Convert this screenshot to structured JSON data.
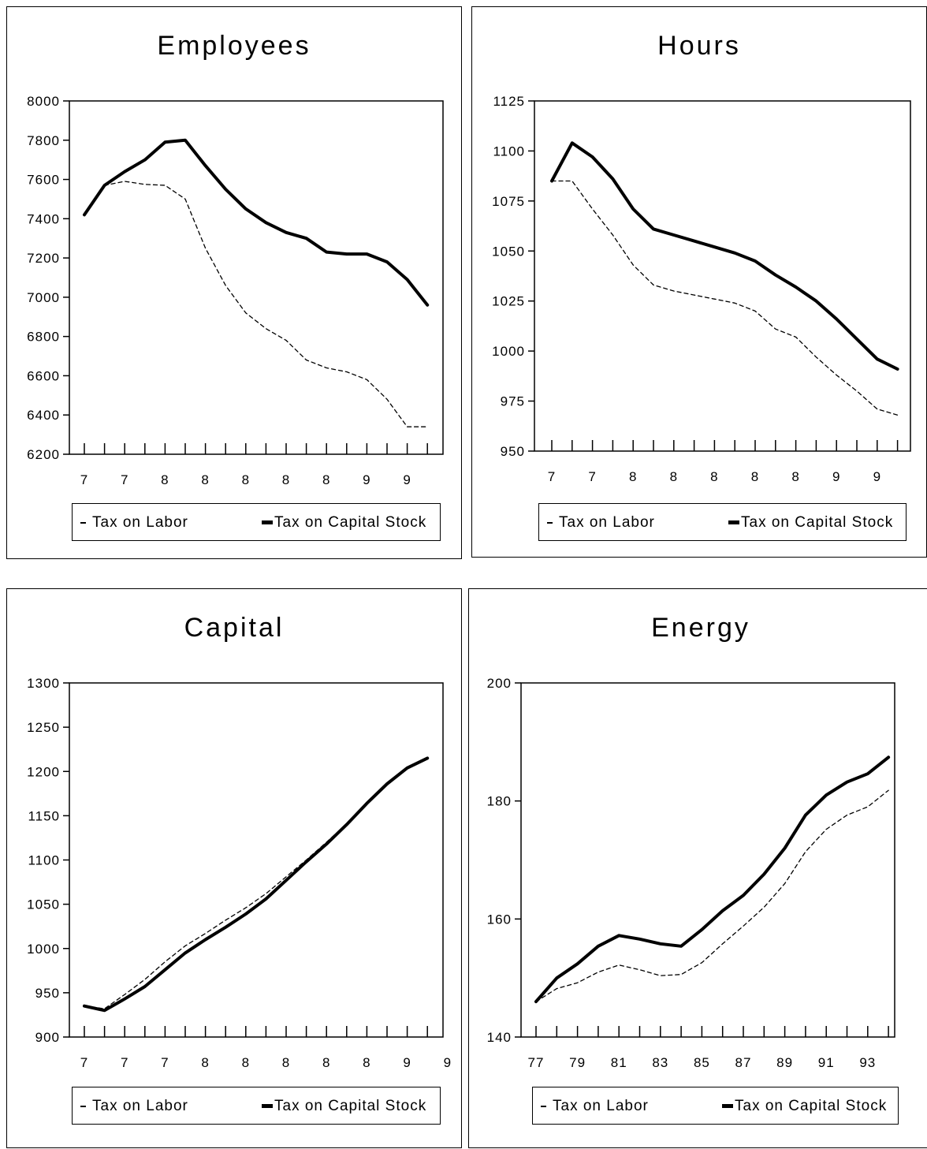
{
  "legend": {
    "series_a": "Tax on Labor",
    "series_b": "Tax on Capital Stock"
  },
  "chart_data": [
    {
      "type": "line",
      "title": "Employees",
      "ylim": [
        6200,
        8000
      ],
      "yticks": [
        6200,
        6400,
        6600,
        6800,
        7000,
        7200,
        7400,
        7600,
        7800,
        8000
      ],
      "x": [
        77,
        78,
        79,
        80,
        81,
        82,
        83,
        84,
        85,
        86,
        87,
        88,
        89,
        90,
        91,
        92,
        93,
        94
      ],
      "xtick_labels": [
        "7",
        "7",
        "8",
        "8",
        "8",
        "8",
        "8",
        "9",
        "9"
      ],
      "legend_position": "bottom",
      "series": [
        {
          "name": "Tax on Labor",
          "style": "dashed",
          "values": [
            7420,
            7570,
            7590,
            7575,
            7570,
            7500,
            7250,
            7060,
            6920,
            6840,
            6780,
            6680,
            6640,
            6620,
            6580,
            6480,
            6340,
            6340
          ]
        },
        {
          "name": "Tax on Capital Stock",
          "style": "solid",
          "values": [
            7420,
            7570,
            7640,
            7700,
            7790,
            7800,
            7670,
            7550,
            7450,
            7380,
            7330,
            7300,
            7230,
            7220,
            7220,
            7180,
            7090,
            6960
          ]
        }
      ]
    },
    {
      "type": "line",
      "title": "Hours",
      "ylim": [
        950,
        1125
      ],
      "yticks": [
        950,
        975,
        1000,
        1025,
        1050,
        1075,
        1100,
        1125
      ],
      "x": [
        77,
        78,
        79,
        80,
        81,
        82,
        83,
        84,
        85,
        86,
        87,
        88,
        89,
        90,
        91,
        92,
        93,
        94
      ],
      "xtick_labels": [
        "7",
        "7",
        "8",
        "8",
        "8",
        "8",
        "8",
        "9",
        "9"
      ],
      "legend_position": "bottom",
      "series": [
        {
          "name": "Tax on Labor",
          "style": "dashed",
          "values": [
            1085,
            1085,
            1071,
            1058,
            1043,
            1033,
            1030,
            1028,
            1026,
            1024,
            1020,
            1011,
            1007,
            997,
            988,
            980,
            971,
            968
          ]
        },
        {
          "name": "Tax on Capital Stock",
          "style": "solid",
          "values": [
            1085,
            1104,
            1097,
            1086,
            1071,
            1061,
            1058,
            1055,
            1052,
            1049,
            1045,
            1038,
            1032,
            1025,
            1016,
            1006,
            996,
            991
          ]
        }
      ]
    },
    {
      "type": "line",
      "title": "Capital",
      "ylim": [
        900,
        1300
      ],
      "yticks": [
        900,
        950,
        1000,
        1050,
        1100,
        1150,
        1200,
        1250,
        1300
      ],
      "x": [
        77,
        78,
        79,
        80,
        81,
        82,
        83,
        84,
        85,
        86,
        87,
        88,
        89,
        90,
        91,
        92,
        93,
        94
      ],
      "xtick_labels": [
        "7",
        "7",
        "7",
        "8",
        "8",
        "8",
        "8",
        "8",
        "9",
        "9"
      ],
      "legend_position": "bottom",
      "series": [
        {
          "name": "Tax on Labor",
          "style": "dashed",
          "values": [
            935,
            932,
            948,
            965,
            985,
            1003,
            1017,
            1032,
            1046,
            1062,
            1081,
            1100,
            1120,
            1141,
            1165,
            1187,
            1204,
            1215
          ]
        },
        {
          "name": "Tax on Capital Stock",
          "style": "solid",
          "values": [
            935,
            930,
            943,
            957,
            976,
            995,
            1010,
            1024,
            1039,
            1056,
            1077,
            1098,
            1118,
            1140,
            1164,
            1186,
            1204,
            1215
          ]
        }
      ]
    },
    {
      "type": "line",
      "title": "Energy",
      "ylim": [
        140,
        200
      ],
      "yticks": [
        140,
        160,
        180,
        200
      ],
      "x": [
        77,
        78,
        79,
        80,
        81,
        82,
        83,
        84,
        85,
        86,
        87,
        88,
        89,
        90,
        91,
        92,
        93,
        94
      ],
      "xtick_labels": [
        "77",
        "79",
        "81",
        "83",
        "85",
        "87",
        "89",
        "91",
        "93"
      ],
      "legend_position": "bottom",
      "series": [
        {
          "name": "Tax on Labor",
          "style": "dashed",
          "values": [
            146,
            148.2,
            149.2,
            151,
            152.2,
            151.4,
            150.4,
            150.6,
            152.6,
            155.8,
            158.8,
            162,
            166,
            171.4,
            175.2,
            177.6,
            179,
            181.8
          ]
        },
        {
          "name": "Tax on Capital Stock",
          "style": "solid",
          "values": [
            146,
            150,
            152.4,
            155.4,
            157.2,
            156.6,
            155.8,
            155.4,
            158.2,
            161.4,
            164,
            167.6,
            172,
            177.6,
            181,
            183.2,
            184.6,
            187.4
          ]
        }
      ]
    }
  ]
}
